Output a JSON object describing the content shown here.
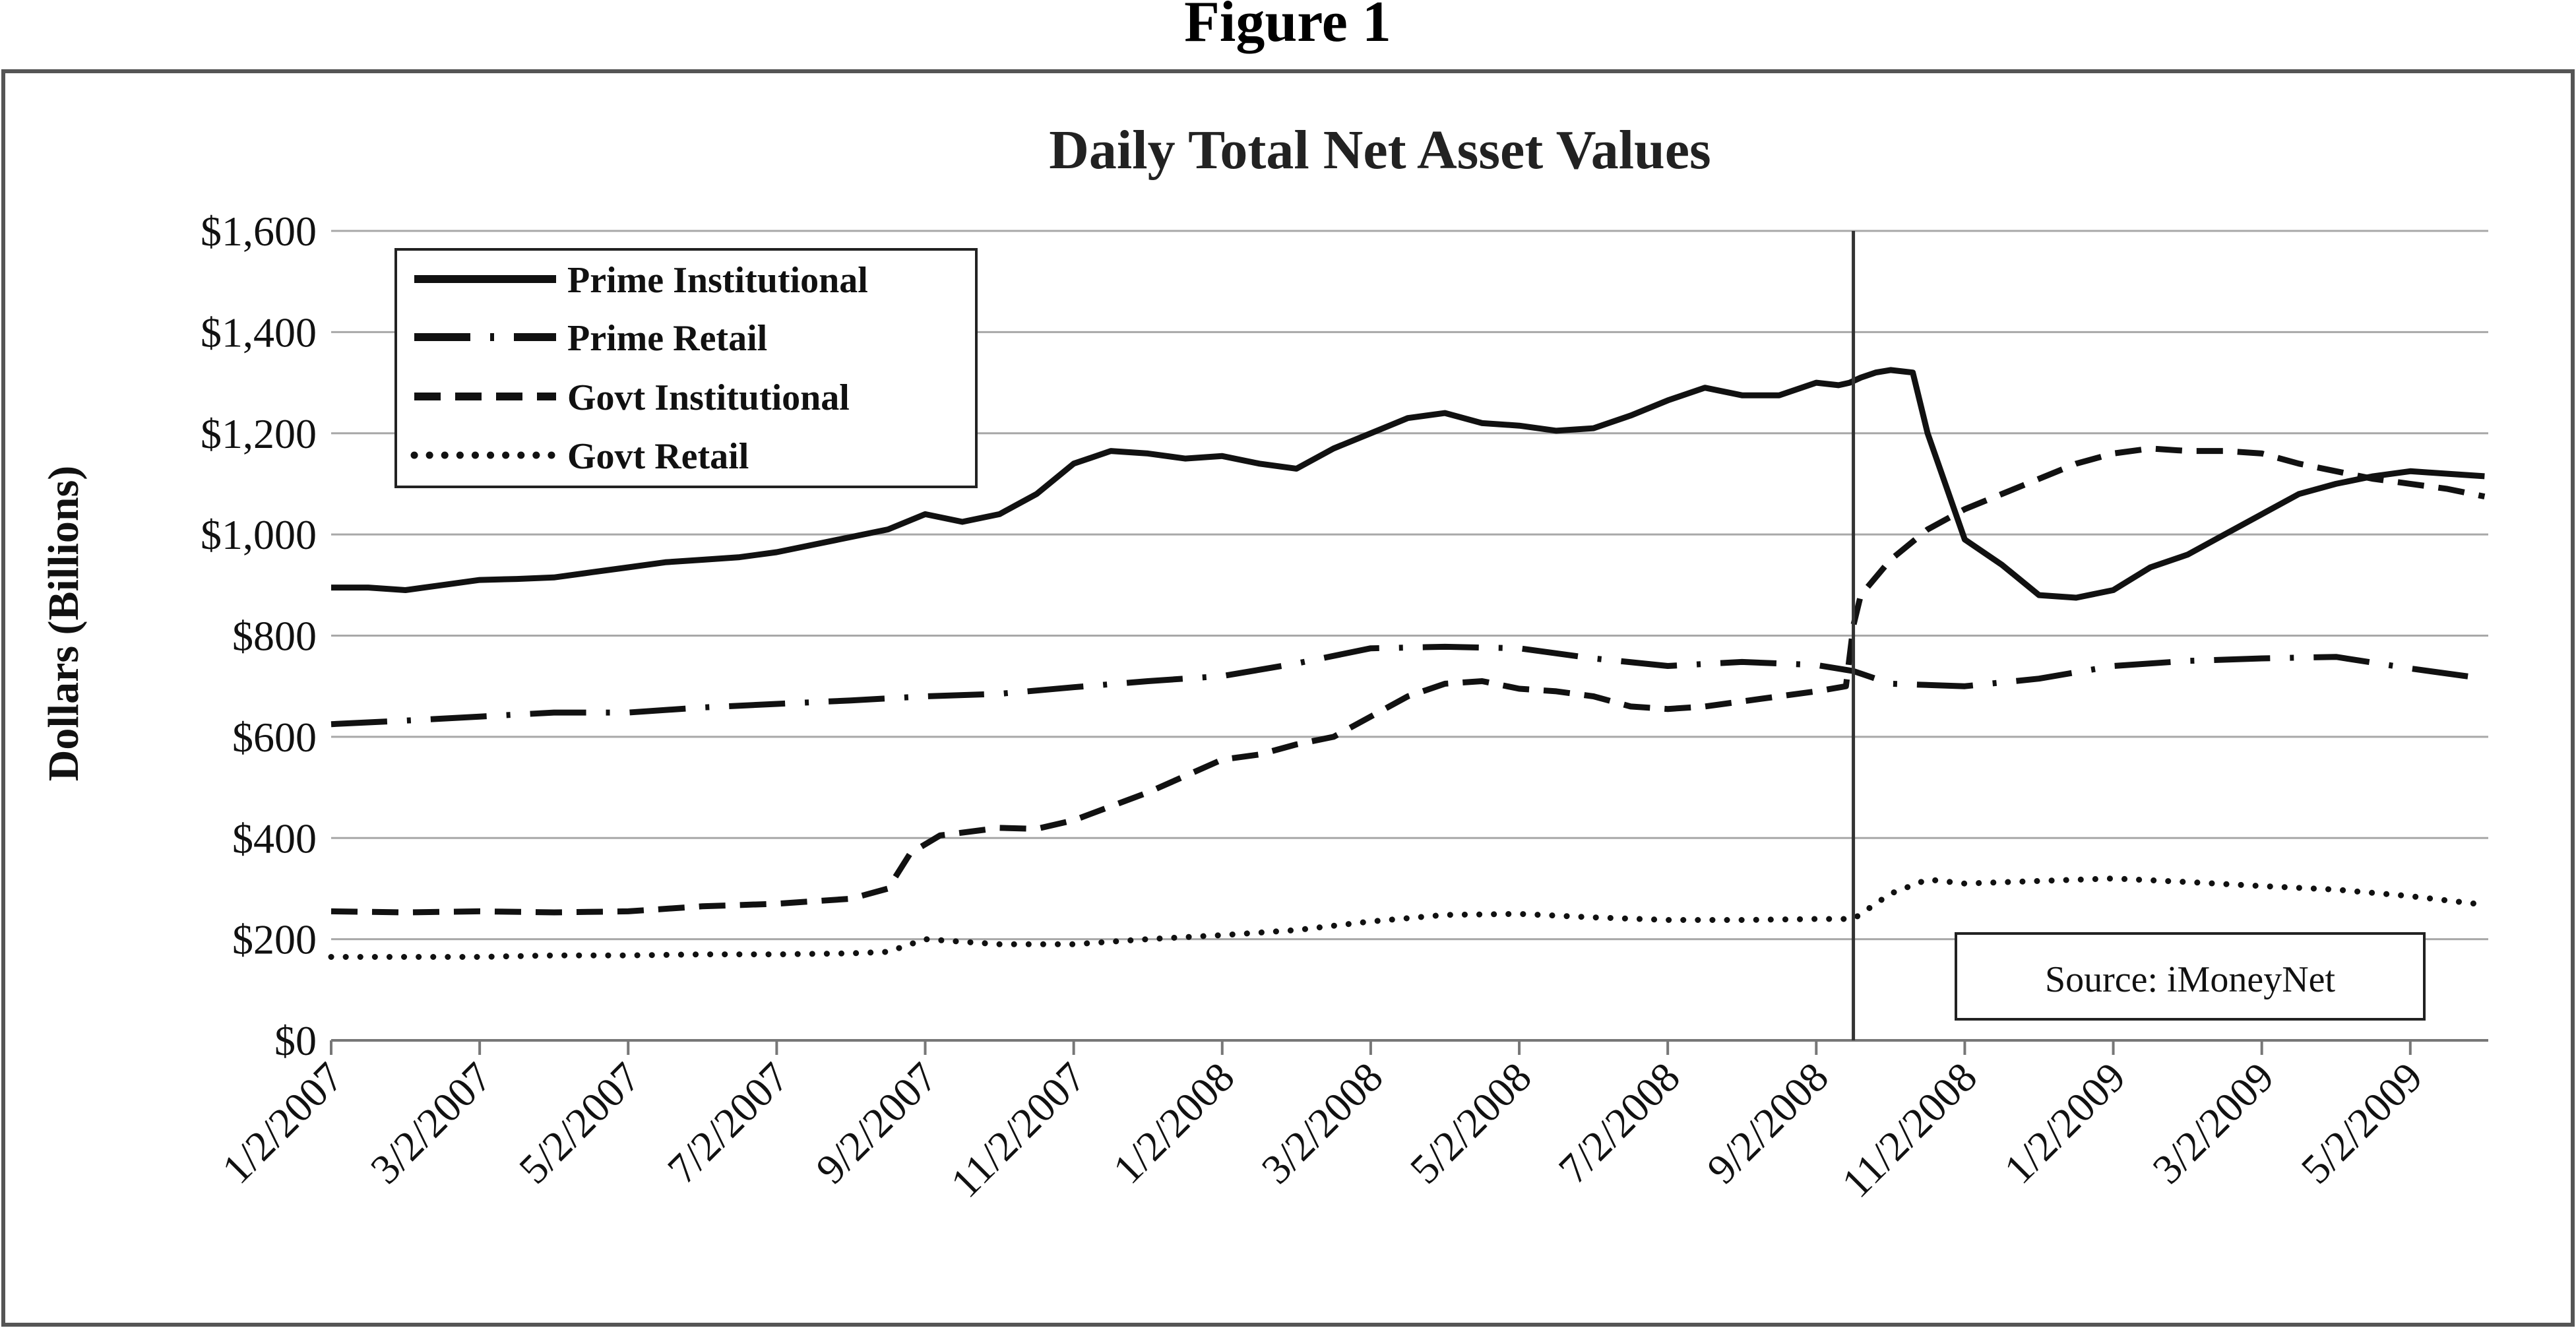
{
  "figure_title": "Figure 1",
  "chart_data": {
    "type": "line",
    "title": "Daily Total Net Asset Values",
    "xlabel": "",
    "ylabel": "Dollars (Billions)",
    "ylim": [
      0,
      1600
    ],
    "yticks": [
      0,
      200,
      400,
      600,
      800,
      1000,
      1200,
      1400,
      1600
    ],
    "ytick_labels": [
      "$0",
      "$200",
      "$400",
      "$600",
      "$800",
      "$1,000",
      "$1,200",
      "$1,400",
      "$1,600"
    ],
    "xlim": [
      0,
      29.05
    ],
    "xticks": [
      0,
      2,
      4,
      6,
      8,
      10,
      12,
      14,
      16,
      18,
      20,
      22,
      24,
      26,
      28
    ],
    "xtick_labels": [
      "1/2/2007",
      "3/2/2007",
      "5/2/2007",
      "7/2/2007",
      "9/2/2007",
      "11/2/2007",
      "1/2/2008",
      "3/2/2008",
      "5/2/2008",
      "7/2/2008",
      "9/2/2008",
      "11/2/2008",
      "1/2/2009",
      "3/2/2009",
      "5/2/2009"
    ],
    "x_unit": "months since 1/2/2007",
    "grid": true,
    "vertical_marker_x": 20.5,
    "legend_position": "top-left",
    "annotation": "Source: iMoneyNet",
    "series": [
      {
        "name": "Prime Institutional",
        "style": "solid",
        "x": [
          0,
          0.5,
          1,
          1.5,
          2,
          2.5,
          3,
          3.5,
          4,
          4.5,
          5,
          5.5,
          6,
          6.5,
          7,
          7.5,
          8,
          8.5,
          9,
          9.5,
          10,
          10.5,
          11,
          11.5,
          12,
          12.5,
          13,
          13.5,
          14,
          14.5,
          15,
          15.5,
          16,
          16.5,
          17,
          17.5,
          18,
          18.5,
          19,
          19.5,
          20,
          20.3,
          20.45,
          20.6,
          20.8,
          21,
          21.3,
          21.5,
          22,
          22.5,
          23,
          23.5,
          24,
          24.5,
          25,
          25.5,
          26,
          26.5,
          27,
          27.5,
          28,
          28.5,
          29
        ],
        "values": [
          895,
          895,
          890,
          900,
          910,
          912,
          915,
          925,
          935,
          945,
          950,
          955,
          965,
          980,
          995,
          1010,
          1040,
          1025,
          1040,
          1080,
          1140,
          1165,
          1160,
          1150,
          1155,
          1140,
          1130,
          1170,
          1200,
          1230,
          1240,
          1220,
          1215,
          1205,
          1210,
          1235,
          1265,
          1290,
          1275,
          1275,
          1300,
          1295,
          1300,
          1310,
          1320,
          1325,
          1320,
          1200,
          990,
          940,
          880,
          875,
          890,
          935,
          960,
          1000,
          1040,
          1080,
          1100,
          1115,
          1125,
          1120,
          1115
        ]
      },
      {
        "name": "Prime Retail",
        "style": "dash-dot",
        "x": [
          0,
          1,
          2,
          3,
          4,
          5,
          6,
          7,
          8,
          9,
          10,
          11,
          12,
          13,
          14,
          15,
          16,
          17,
          18,
          19,
          20,
          20.5,
          21,
          22,
          23,
          24,
          25,
          26,
          27,
          28,
          29
        ],
        "values": [
          625,
          632,
          640,
          648,
          648,
          658,
          665,
          672,
          680,
          685,
          698,
          710,
          720,
          745,
          775,
          778,
          775,
          755,
          740,
          748,
          742,
          730,
          705,
          700,
          715,
          740,
          750,
          755,
          758,
          735,
          715
        ]
      },
      {
        "name": "Govt Institutional",
        "style": "dashed",
        "x": [
          0,
          1,
          2,
          3,
          4,
          5,
          6,
          7,
          7.5,
          7.8,
          8.2,
          9,
          9.5,
          10,
          11,
          12,
          12.5,
          13,
          13.5,
          14,
          14.5,
          15,
          15.5,
          16,
          16.5,
          17,
          17.5,
          18,
          18.5,
          19,
          19.5,
          20,
          20.4,
          20.5,
          20.6,
          21,
          21.5,
          22,
          22.5,
          23,
          23.5,
          24,
          24.5,
          25,
          25.5,
          26,
          26.5,
          27,
          27.5,
          28,
          28.5,
          29
        ],
        "values": [
          255,
          253,
          255,
          253,
          255,
          265,
          270,
          280,
          300,
          370,
          405,
          420,
          418,
          435,
          490,
          555,
          565,
          585,
          600,
          640,
          680,
          705,
          710,
          695,
          690,
          680,
          660,
          655,
          660,
          670,
          680,
          690,
          700,
          820,
          880,
          950,
          1010,
          1050,
          1080,
          1110,
          1140,
          1160,
          1170,
          1165,
          1165,
          1160,
          1140,
          1125,
          1110,
          1100,
          1090,
          1075
        ]
      },
      {
        "name": "Govt Retail",
        "style": "dotted",
        "x": [
          0,
          1,
          2,
          3,
          4,
          5,
          6,
          7,
          7.5,
          7.8,
          8,
          8.5,
          9,
          10,
          11,
          12,
          13,
          14,
          15,
          16,
          17,
          18,
          19,
          20,
          20.5,
          21,
          21.5,
          22,
          23,
          24,
          25,
          26,
          27,
          28,
          29
        ],
        "values": [
          165,
          165,
          165,
          168,
          168,
          170,
          170,
          172,
          175,
          190,
          200,
          195,
          190,
          190,
          200,
          208,
          218,
          235,
          248,
          250,
          243,
          238,
          238,
          240,
          240,
          290,
          318,
          310,
          315,
          320,
          313,
          305,
          298,
          285,
          268
        ]
      }
    ]
  }
}
